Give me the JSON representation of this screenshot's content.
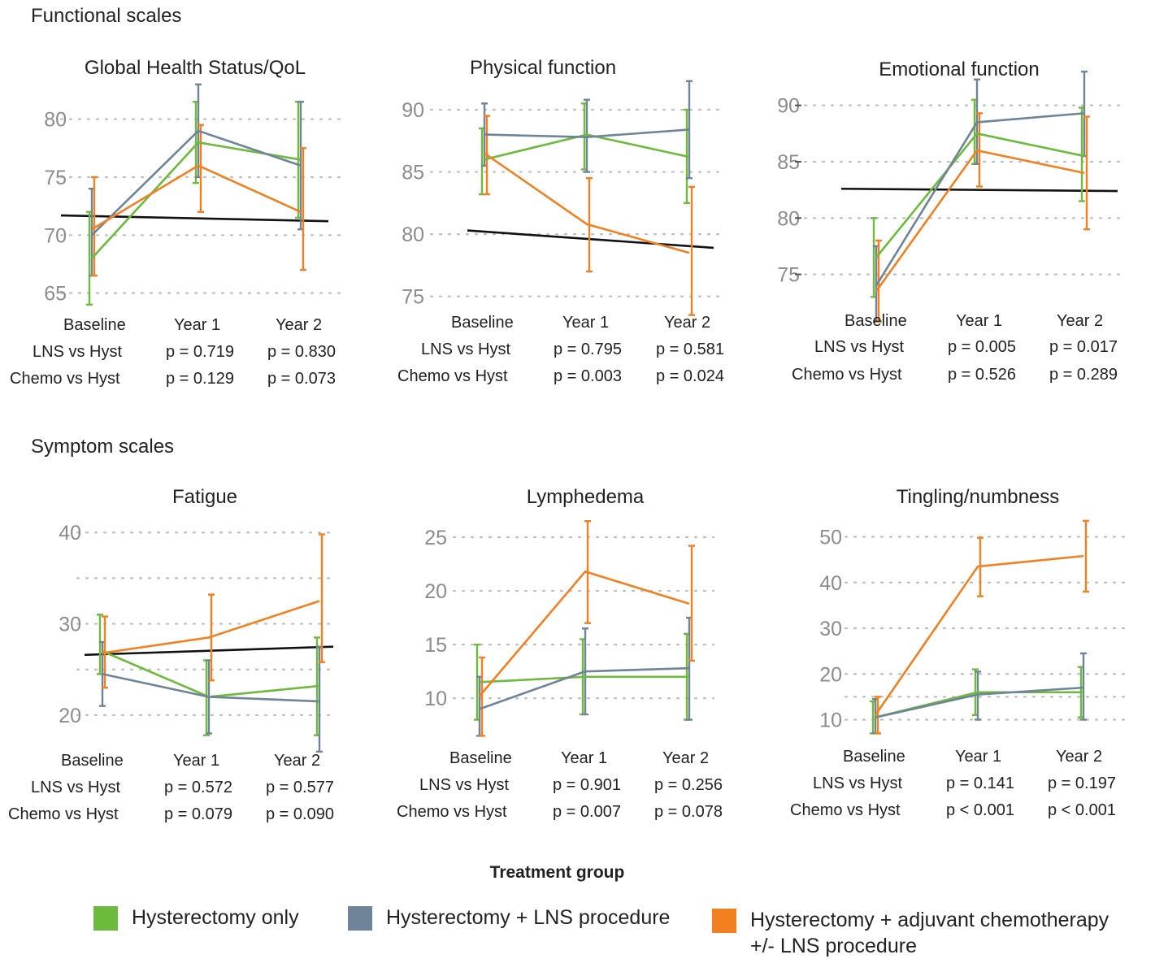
{
  "sections": {
    "functional": "Functional scales",
    "symptom": "Symptom scales"
  },
  "row_labels": {
    "lns": "LNS vs Hyst",
    "chemo": "Chemo vs Hyst"
  },
  "legend": {
    "title": "Treatment group",
    "items": [
      {
        "label": "Hysterectomy only",
        "color": "#6cbb3c"
      },
      {
        "label": "Hysterectomy + LNS procedure",
        "color": "#6f8499"
      },
      {
        "label": "Hysterectomy + adjuvant chemotherapy",
        "label2": "+/- LNS procedure",
        "color": "#f38020"
      }
    ]
  },
  "chart_data": [
    {
      "type": "line",
      "title": "Global Health Status/QoL",
      "categories": [
        "Baseline",
        "Year 1",
        "Year 2"
      ],
      "ylim": [
        63.5,
        82.5
      ],
      "yticks": [
        65,
        70,
        75,
        80
      ],
      "grid": true,
      "series": [
        {
          "name": "Hysterectomy only",
          "color": "#6cbb3c",
          "values": [
            68.0,
            78.0,
            76.5
          ],
          "err": [
            [
              64.0,
              72.0
            ],
            [
              74.5,
              81.5
            ],
            [
              71.5,
              81.5
            ]
          ]
        },
        {
          "name": "Hysterectomy + LNS procedure",
          "color": "#6f8499",
          "values": [
            70.0,
            79.0,
            76.0
          ],
          "err": [
            [
              66.5,
              74.0
            ],
            [
              75.0,
              83.0
            ],
            [
              70.5,
              81.5
            ]
          ]
        },
        {
          "name": "Hysterectomy + adjuvant chemotherapy +/- LNS procedure",
          "color": "#f38020",
          "values": [
            70.5,
            76.0,
            72.0
          ],
          "err": [
            [
              66.5,
              75.0
            ],
            [
              72.0,
              79.5
            ],
            [
              67.0,
              77.5
            ]
          ]
        }
      ],
      "trend": [
        71.7,
        71.2
      ],
      "pvalues": {
        "lns": [
          "p = 0.719",
          "p = 0.830"
        ],
        "chemo": [
          "p = 0.129",
          "p = 0.073"
        ]
      }
    },
    {
      "type": "line",
      "title": "Physical function",
      "categories": [
        "Baseline",
        "Year 1",
        "Year 2"
      ],
      "ylim": [
        74,
        91.5
      ],
      "yticks": [
        75,
        80,
        85,
        90
      ],
      "grid": true,
      "series": [
        {
          "name": "Hysterectomy only",
          "color": "#6cbb3c",
          "values": [
            86.0,
            88.0,
            86.2
          ],
          "err": [
            [
              83.2,
              88.5
            ],
            [
              85.2,
              90.5
            ],
            [
              82.5,
              90.0
            ]
          ]
        },
        {
          "name": "Hysterectomy + LNS procedure",
          "color": "#6f8499",
          "values": [
            88.0,
            87.8,
            88.4
          ],
          "err": [
            [
              85.5,
              90.5
            ],
            [
              85.0,
              90.8
            ],
            [
              84.5,
              92.3
            ]
          ]
        },
        {
          "name": "Hysterectomy + adjuvant chemotherapy +/- LNS procedure",
          "color": "#f38020",
          "values": [
            86.5,
            80.8,
            78.5
          ],
          "err": [
            [
              83.2,
              89.5
            ],
            [
              77.0,
              84.5
            ],
            [
              73.5,
              83.8
            ]
          ]
        }
      ],
      "trend": [
        80.3,
        78.9
      ],
      "pvalues": {
        "lns": [
          "p = 0.795",
          "p = 0.581"
        ],
        "chemo": [
          "p = 0.003",
          "p = 0.024"
        ]
      }
    },
    {
      "type": "line",
      "title": "Emotional function",
      "categories": [
        "Baseline",
        "Year 1",
        "Year 2"
      ],
      "ylim": [
        70.5,
        92.5
      ],
      "yticks": [
        75,
        80,
        85,
        90
      ],
      "grid": true,
      "series": [
        {
          "name": "Hysterectomy only",
          "color": "#6cbb3c",
          "values": [
            76.5,
            87.5,
            85.5
          ],
          "err": [
            [
              73.0,
              80.0
            ],
            [
              84.8,
              90.5
            ],
            [
              81.5,
              89.8
            ]
          ]
        },
        {
          "name": "Hysterectomy + LNS procedure",
          "color": "#6f8499",
          "values": [
            74.0,
            88.5,
            89.3
          ],
          "err": [
            [
              70.8,
              77.5
            ],
            [
              84.8,
              92.3
            ],
            [
              85.5,
              93.0
            ]
          ]
        },
        {
          "name": "Hysterectomy + adjuvant chemotherapy +/- LNS procedure",
          "color": "#f38020",
          "values": [
            73.5,
            86.0,
            84.0
          ],
          "err": [
            [
              70.8,
              78.0
            ],
            [
              82.8,
              89.3
            ],
            [
              79.0,
              89.0
            ]
          ]
        }
      ],
      "trend": [
        82.6,
        82.4
      ],
      "pvalues": {
        "lns": [
          "p = 0.005",
          "p = 0.017"
        ],
        "chemo": [
          "p = 0.526",
          "p = 0.289"
        ]
      }
    },
    {
      "type": "line",
      "title": "Fatigue",
      "categories": [
        "Baseline",
        "Year 1",
        "Year 2"
      ],
      "ylim": [
        17.5,
        41
      ],
      "yticks": [
        20,
        30,
        40
      ],
      "gridlines": [
        20,
        25,
        30,
        35,
        40
      ],
      "grid": true,
      "series": [
        {
          "name": "Hysterectomy only",
          "color": "#6cbb3c",
          "values": [
            27.0,
            22.0,
            23.2
          ],
          "err": [
            [
              24.5,
              31.0
            ],
            [
              17.8,
              26.0
            ],
            [
              17.8,
              28.5
            ]
          ]
        },
        {
          "name": "Hysterectomy + LNS procedure",
          "color": "#6f8499",
          "values": [
            24.5,
            22.0,
            21.5
          ],
          "err": [
            [
              21.0,
              28.0
            ],
            [
              18.0,
              26.0
            ],
            [
              16.0,
              27.5
            ]
          ]
        },
        {
          "name": "Hysterectomy + adjuvant chemotherapy +/- LNS procedure",
          "color": "#f38020",
          "values": [
            26.8,
            28.5,
            32.5
          ],
          "err": [
            [
              23.0,
              30.8
            ],
            [
              23.8,
              33.2
            ],
            [
              25.8,
              39.8
            ]
          ]
        }
      ],
      "trend": [
        26.6,
        27.5
      ],
      "pvalues": {
        "lns": [
          "p = 0.572",
          "p = 0.577"
        ],
        "chemo": [
          "p = 0.079",
          "p = 0.090"
        ]
      }
    },
    {
      "type": "line",
      "title": "Lymphedema",
      "categories": [
        "Baseline",
        "Year 1",
        "Year 2"
      ],
      "ylim": [
        6,
        27.5
      ],
      "yticks": [
        10,
        15,
        20,
        25
      ],
      "grid": true,
      "series": [
        {
          "name": "Hysterectomy only",
          "color": "#6cbb3c",
          "values": [
            11.5,
            12.0,
            12.0
          ],
          "err": [
            [
              8.0,
              15.0
            ],
            [
              8.5,
              15.5
            ],
            [
              8.0,
              16.0
            ]
          ]
        },
        {
          "name": "Hysterectomy + LNS procedure",
          "color": "#6f8499",
          "values": [
            9.0,
            12.5,
            12.8
          ],
          "err": [
            [
              6.5,
              12.0
            ],
            [
              8.5,
              16.5
            ],
            [
              8.0,
              17.5
            ]
          ]
        },
        {
          "name": "Hysterectomy + adjuvant chemotherapy +/- LNS procedure",
          "color": "#f38020",
          "values": [
            10.2,
            21.8,
            18.8
          ],
          "err": [
            [
              6.5,
              13.8
            ],
            [
              17.0,
              26.5
            ],
            [
              13.5,
              24.2
            ]
          ]
        }
      ],
      "pvalues": {
        "lns": [
          "p = 0.901",
          "p = 0.256"
        ],
        "chemo": [
          "p = 0.007",
          "p = 0.078"
        ]
      }
    },
    {
      "type": "line",
      "title": "Tingling/numbness",
      "categories": [
        "Baseline",
        "Year 1",
        "Year 2"
      ],
      "ylim": [
        6,
        54
      ],
      "yticks": [
        10,
        20,
        30,
        40,
        50
      ],
      "gridlines": [
        10,
        15,
        20,
        30,
        40,
        50
      ],
      "grid": true,
      "series": [
        {
          "name": "Hysterectomy only",
          "color": "#6cbb3c",
          "values": [
            10.5,
            16.0,
            16.0
          ],
          "err": [
            [
              7.0,
              14.0
            ],
            [
              11.0,
              21.0
            ],
            [
              10.5,
              21.5
            ]
          ]
        },
        {
          "name": "Hysterectomy + LNS procedure",
          "color": "#6f8499",
          "values": [
            10.5,
            15.5,
            17.0
          ],
          "err": [
            [
              7.0,
              14.5
            ],
            [
              10.0,
              20.5
            ],
            [
              10.0,
              24.5
            ]
          ]
        },
        {
          "name": "Hysterectomy + adjuvant chemotherapy +/- LNS procedure",
          "color": "#f38020",
          "values": [
            11.0,
            43.5,
            45.8
          ],
          "err": [
            [
              7.0,
              15.0
            ],
            [
              37.0,
              49.8
            ],
            [
              38.0,
              53.5
            ]
          ]
        }
      ],
      "pvalues": {
        "lns": [
          "p = 0.141",
          "p = 0.197"
        ],
        "chemo": [
          "p < 0.001",
          "p < 0.001"
        ]
      }
    }
  ]
}
